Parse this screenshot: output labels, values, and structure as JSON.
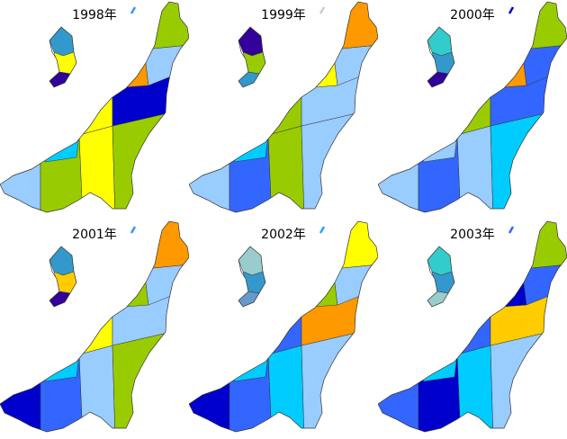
{
  "maps": [
    {
      "title": "1998年",
      "sado": [
        "#3399cc",
        "#ffff00",
        "#330099"
      ],
      "islet": "#3399ff",
      "cells": [
        "#99ccff",
        "#99cc00",
        "#ffff00",
        "#99cc00",
        "#ffff00",
        "#0000cc",
        "#ff9900",
        "#99ccff",
        "#99cc00",
        "#00ccff"
      ]
    },
    {
      "title": "1999年",
      "sado": [
        "#330099",
        "#99cc00",
        "#3399cc"
      ],
      "islet": "#cccccc",
      "cells": [
        "#99ccff",
        "#3366ff",
        "#99cc00",
        "#99ccff",
        "#99cc00",
        "#99ccff",
        "#ffff00",
        "#99ccff",
        "#ff9900",
        "#00ccff"
      ]
    },
    {
      "title": "2000年",
      "sado": [
        "#33cccc",
        "#3399cc",
        "#330099"
      ],
      "islet": "#0000cc",
      "cells": [
        "#99ccff",
        "#3366ff",
        "#99ccff",
        "#00ccff",
        "#99cc00",
        "#3366ff",
        "#ff9900",
        "#3366ff",
        "#99cc00",
        "#99ccff"
      ]
    },
    {
      "title": "2001年",
      "sado": [
        "#3399cc",
        "#ffcc00",
        "#330099"
      ],
      "islet": "#3399ff",
      "cells": [
        "#0000cc",
        "#3366ff",
        "#99ccff",
        "#99cc00",
        "#ffff00",
        "#99ccff",
        "#99cc00",
        "#99ccff",
        "#ff9900",
        "#00ccff"
      ]
    },
    {
      "title": "2002年",
      "sado": [
        "#99cccc",
        "#3399cc",
        "#6699cc"
      ],
      "islet": "#3399ff",
      "cells": [
        "#0000cc",
        "#3366ff",
        "#00ccff",
        "#99ccff",
        "#3366ff",
        "#ff9900",
        "#99cc00",
        "#99ccff",
        "#ffff00",
        "#00ccff"
      ]
    },
    {
      "title": "2003年",
      "sado": [
        "#33cccc",
        "#3399cc",
        "#99cccc"
      ],
      "islet": "#3366ff",
      "cells": [
        "#3366ff",
        "#0000cc",
        "#00ccff",
        "#99ccff",
        "#3366ff",
        "#ffcc00",
        "#0000cc",
        "#3366ff",
        "#99cc00",
        "#00ccff"
      ]
    }
  ]
}
